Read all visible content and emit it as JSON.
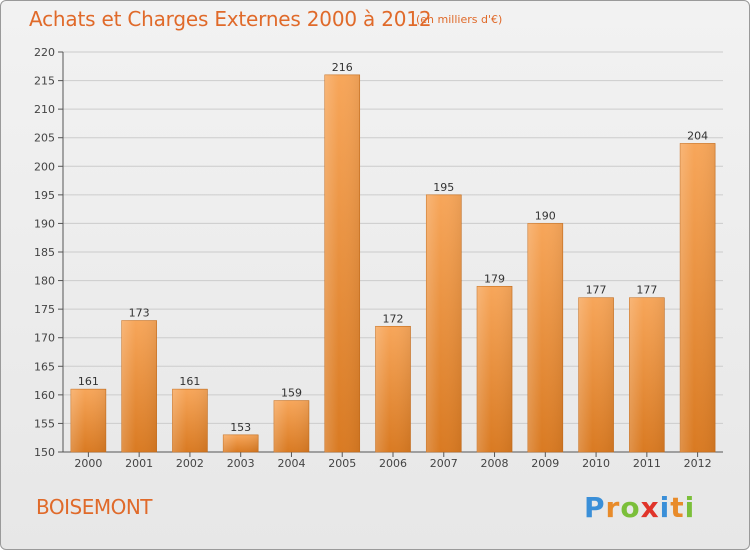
{
  "header": {
    "title": "Achats et Charges Externes 2000 à 2012",
    "subtitle": "(en milliers d'€)"
  },
  "footer": {
    "commune": "BOISEMONT",
    "logo_text": "Proxiti"
  },
  "colors": {
    "title": "#e06a2a",
    "bar_top": "#f7a65a",
    "bar_bottom": "#d97a22",
    "grid": "#cccccc"
  },
  "chart_data": {
    "type": "bar",
    "title": "Achats et Charges Externes 2000 à 2012",
    "subtitle": "(en milliers d'€)",
    "categories": [
      "2000",
      "2001",
      "2002",
      "2003",
      "2004",
      "2005",
      "2006",
      "2007",
      "2008",
      "2009",
      "2010",
      "2011",
      "2012"
    ],
    "values": [
      161,
      173,
      161,
      153,
      159,
      216,
      172,
      195,
      179,
      190,
      177,
      177,
      204
    ],
    "ylim": [
      150,
      220
    ],
    "yticks": [
      150,
      155,
      160,
      165,
      170,
      175,
      180,
      185,
      190,
      195,
      200,
      205,
      210,
      215,
      220
    ],
    "grid": true,
    "xlabel": "",
    "ylabel": ""
  }
}
